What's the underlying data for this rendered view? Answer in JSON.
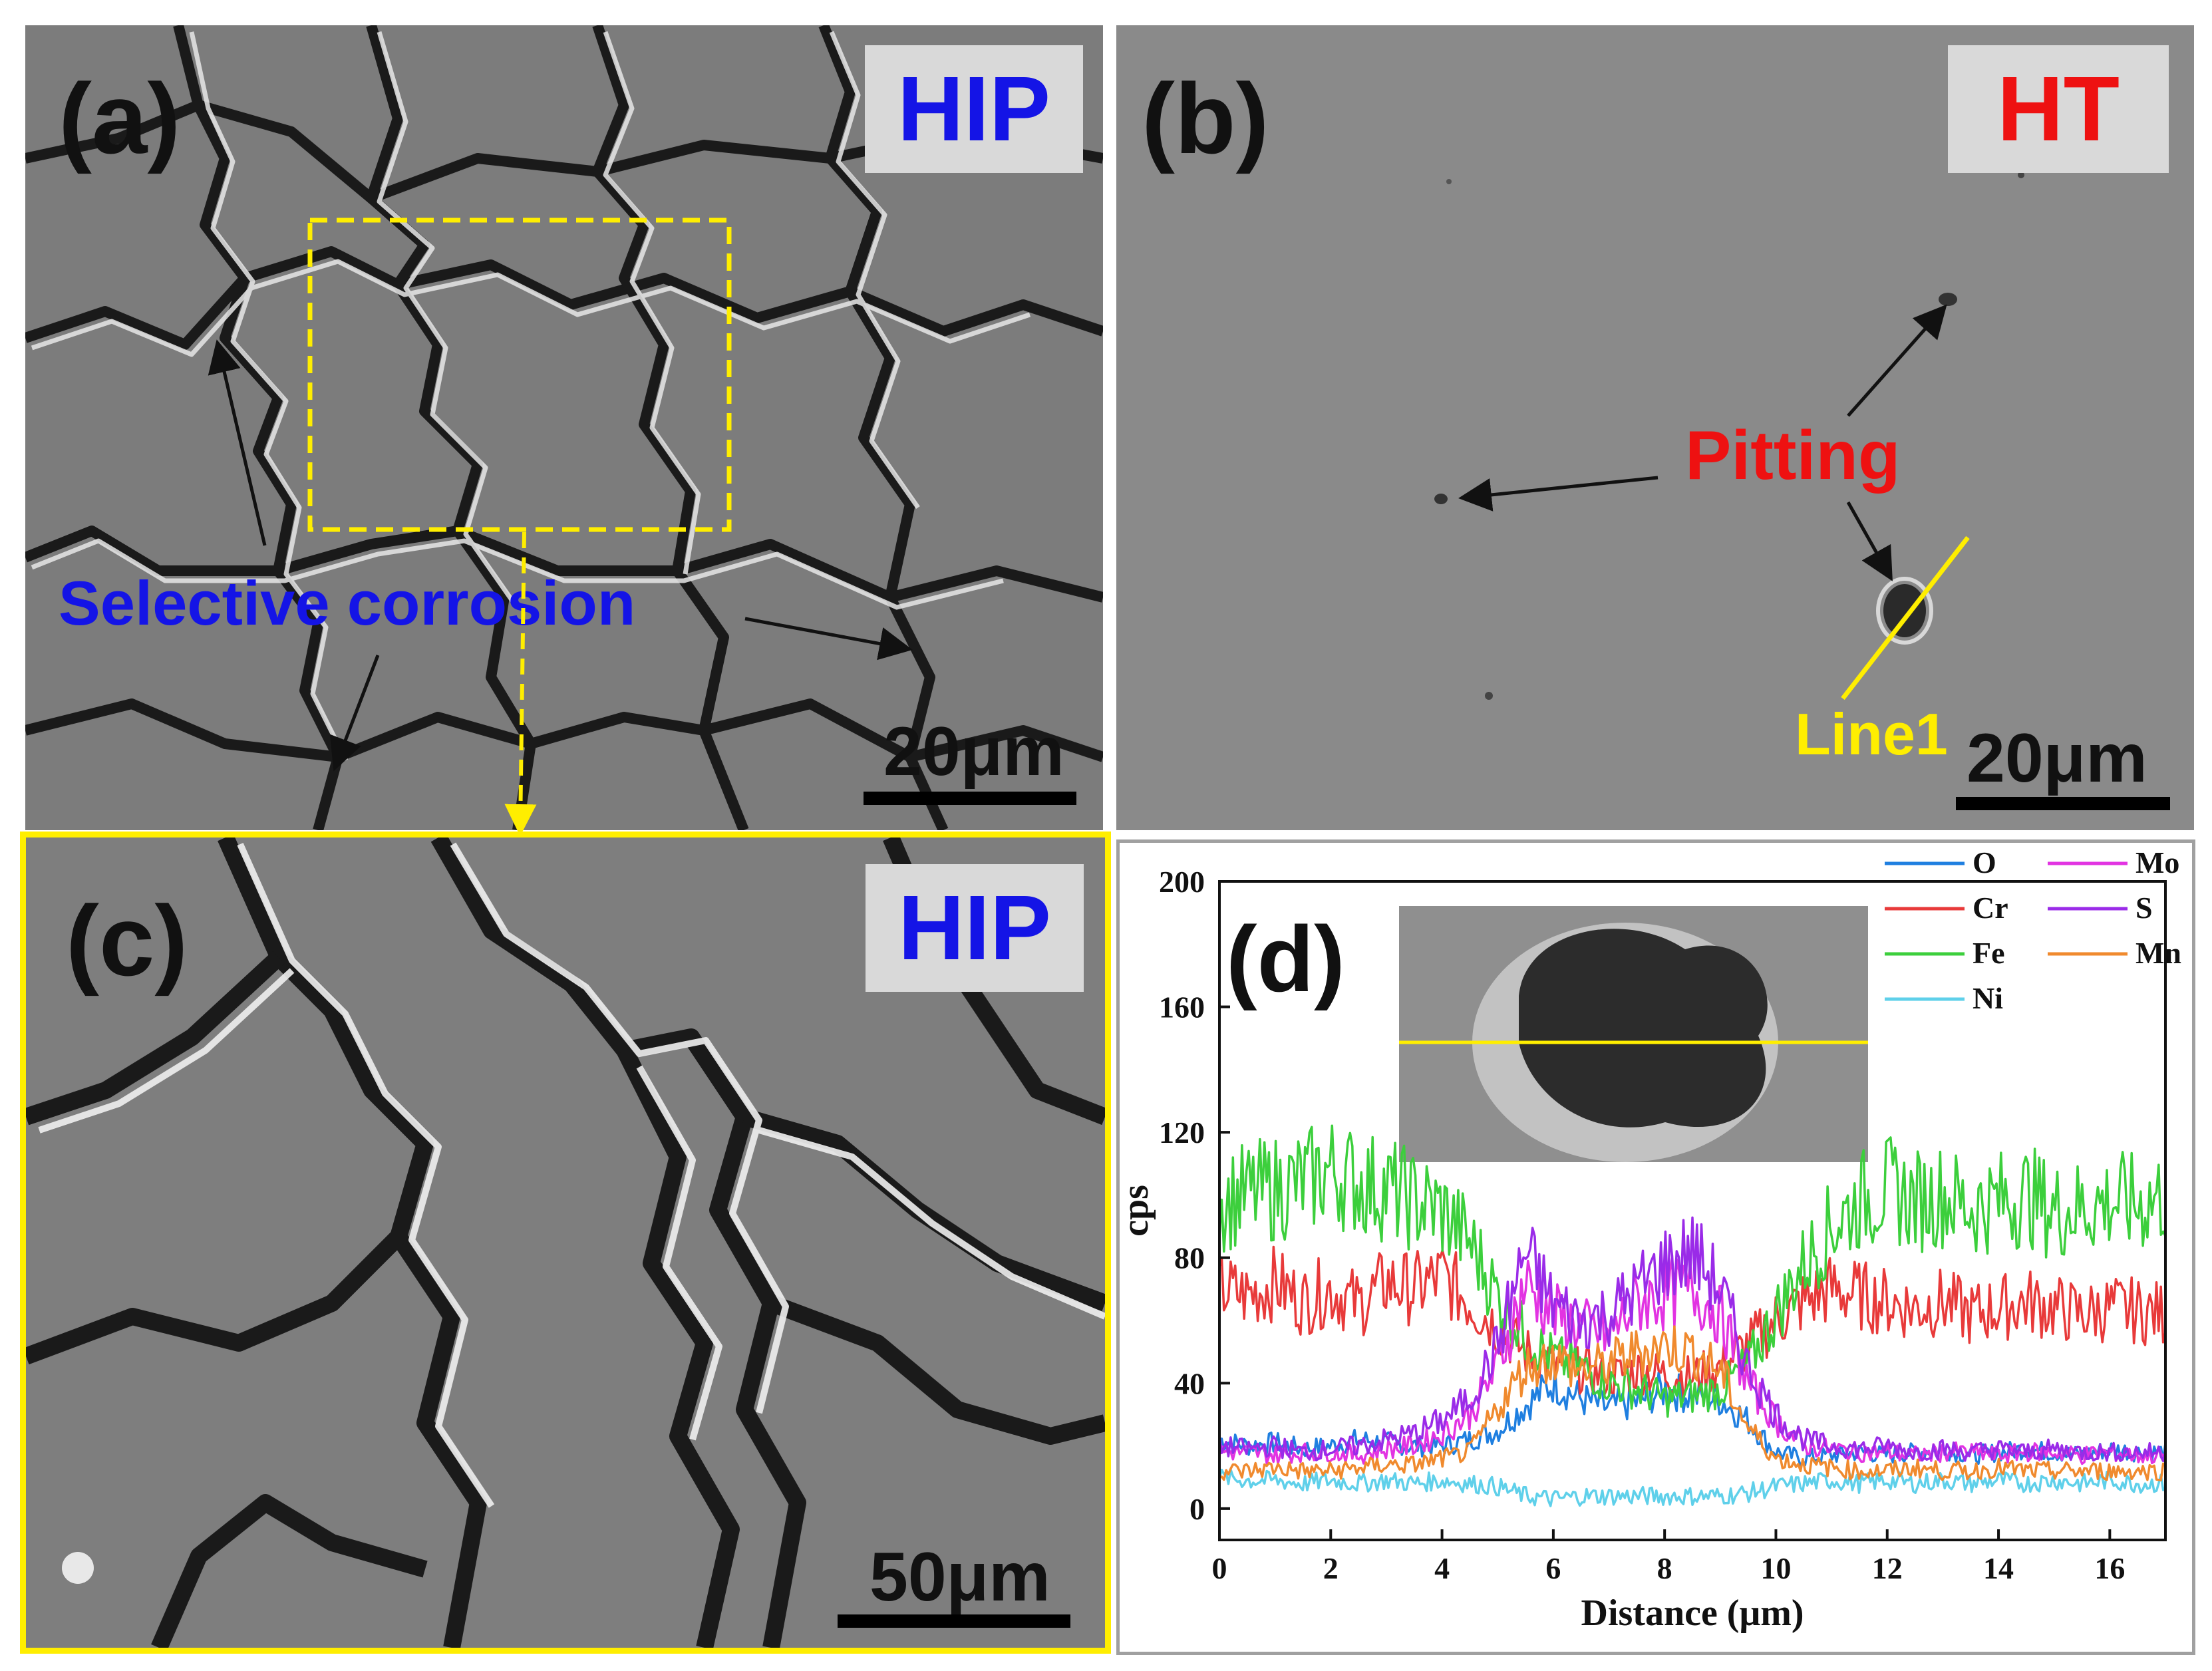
{
  "panel_a": {
    "label": "(a)",
    "tag": "HIP",
    "annotation": "Selective corrosion",
    "scale": "20μm"
  },
  "panel_b": {
    "label": "(b)",
    "tag": "HT",
    "annotation": "Pitting",
    "line_label": "Line1",
    "scale": "20μm"
  },
  "panel_c": {
    "label": "(c)",
    "tag": "HIP",
    "scale": "50μm"
  },
  "colors": {
    "blue_text": "#1414e6",
    "red_text": "#ee1111",
    "yellow": "#ffee00",
    "tag_bg": "#d9d9d9",
    "sem_matrix": "#7c7c7c",
    "sem_ht": "#8a8a8a"
  },
  "chart_data": {
    "type": "line",
    "panel_label": "(d)",
    "xlabel": "Distance (μm)",
    "ylabel": "cps",
    "xlim": [
      0,
      17
    ],
    "ylim": [
      -10,
      200
    ],
    "xticks": [
      0,
      2,
      4,
      6,
      8,
      10,
      12,
      14,
      16
    ],
    "yticks": [
      0,
      40,
      80,
      120,
      160,
      200
    ],
    "legend_position": "top-right",
    "x": [
      0,
      0.5,
      1,
      1.5,
      2,
      2.5,
      3,
      3.5,
      4,
      4.5,
      5,
      5.5,
      6,
      6.5,
      7,
      7.5,
      8,
      8.5,
      9,
      9.5,
      10,
      10.5,
      11,
      11.5,
      12,
      12.5,
      13,
      13.5,
      14,
      14.5,
      15,
      15.5,
      16,
      16.5,
      17
    ],
    "series": [
      {
        "name": "O",
        "color": "#1f7fe0",
        "values": [
          22,
          20,
          21,
          19,
          20,
          22,
          21,
          20,
          20,
          22,
          25,
          33,
          40,
          35,
          32,
          34,
          38,
          36,
          35,
          28,
          18,
          16,
          17,
          18,
          17,
          18,
          19,
          17,
          18,
          19,
          18,
          17,
          19,
          18,
          18
        ]
      },
      {
        "name": "Cr",
        "color": "#e83a3a",
        "values": [
          70,
          68,
          72,
          66,
          70,
          65,
          72,
          70,
          74,
          66,
          58,
          50,
          46,
          44,
          42,
          44,
          43,
          42,
          45,
          52,
          60,
          66,
          70,
          68,
          66,
          64,
          66,
          62,
          64,
          66,
          64,
          62,
          64,
          63,
          62
        ]
      },
      {
        "name": "Fe",
        "color": "#3ccf3c",
        "values": [
          98,
          100,
          102,
          104,
          108,
          104,
          102,
          98,
          95,
          85,
          68,
          55,
          48,
          45,
          40,
          38,
          35,
          36,
          38,
          46,
          62,
          78,
          90,
          98,
          102,
          98,
          100,
          96,
          98,
          100,
          95,
          96,
          98,
          97,
          100
        ]
      },
      {
        "name": "Ni",
        "color": "#5fd0ea",
        "values": [
          10,
          9,
          9,
          8,
          9,
          8,
          9,
          8,
          9,
          8,
          7,
          4,
          3,
          4,
          4,
          4,
          4,
          4,
          4,
          5,
          7,
          8,
          9,
          8,
          9,
          8,
          9,
          8,
          9,
          8,
          9,
          8,
          9,
          8,
          8
        ]
      },
      {
        "name": "Mo",
        "color": "#e233e2",
        "values": [
          18,
          18,
          17,
          18,
          18,
          17,
          19,
          20,
          24,
          30,
          45,
          72,
          62,
          58,
          55,
          66,
          68,
          70,
          62,
          40,
          28,
          20,
          19,
          18,
          18,
          17,
          18,
          18,
          17,
          18,
          18,
          17,
          18,
          17,
          17
        ]
      },
      {
        "name": "S",
        "color": "#9a2be8",
        "values": [
          20,
          19,
          20,
          18,
          19,
          20,
          22,
          24,
          28,
          35,
          52,
          82,
          65,
          60,
          62,
          70,
          78,
          82,
          70,
          45,
          30,
          22,
          20,
          19,
          20,
          18,
          19,
          18,
          19,
          18,
          19,
          18,
          18,
          18,
          18
        ]
      },
      {
        "name": "Mn",
        "color": "#f08a2e",
        "values": [
          12,
          12,
          13,
          12,
          12,
          13,
          14,
          14,
          16,
          18,
          32,
          45,
          48,
          44,
          46,
          50,
          52,
          50,
          44,
          26,
          16,
          14,
          13,
          12,
          12,
          13,
          12,
          12,
          13,
          12,
          12,
          12,
          12,
          12,
          12
        ]
      }
    ]
  }
}
